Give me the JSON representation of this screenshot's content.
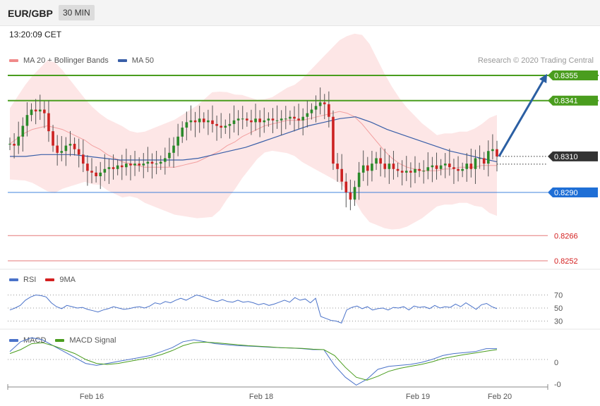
{
  "header": {
    "pair": "EUR/GBP",
    "timeframe": "30 MIN",
    "time": "13:20:09 CET"
  },
  "credit": "Research © 2020 Trading Central",
  "chart_data": [
    {
      "type": "candlestick",
      "legend": [
        {
          "name": "MA 20 + Bollinger Bands",
          "color": "#f08a8a"
        },
        {
          "name": "MA 50",
          "color": "#3a5fa8"
        }
      ],
      "x_labels": [
        "Feb 16",
        "Feb 18",
        "Feb 19",
        "Feb 20"
      ],
      "current_price": "0.8310",
      "levels": [
        {
          "label": "0.8355",
          "value": 0.8355,
          "kind": "resistance",
          "color": "#4a9d1e"
        },
        {
          "label": "0.8341",
          "value": 0.8341,
          "kind": "resistance",
          "color": "#4a9d1e"
        },
        {
          "label": "0.8290",
          "value": 0.829,
          "kind": "support",
          "color": "#1f6fd6"
        },
        {
          "label": "0.8266",
          "value": 0.8266,
          "kind": "support",
          "color": "#d42020"
        },
        {
          "label": "0.8252",
          "value": 0.8252,
          "kind": "support",
          "color": "#d42020"
        }
      ],
      "close_series": [
        0.8317,
        0.8316,
        0.8321,
        0.8327,
        0.8333,
        0.8336,
        0.8335,
        0.8336,
        0.8334,
        0.8324,
        0.8316,
        0.8312,
        0.8313,
        0.8316,
        0.8317,
        0.8314,
        0.8311,
        0.8306,
        0.8302,
        0.8301,
        0.8299,
        0.8301,
        0.8303,
        0.8304,
        0.8303,
        0.8305,
        0.8304,
        0.8306,
        0.8305,
        0.8306,
        0.8305,
        0.8306,
        0.8307,
        0.8306,
        0.8306,
        0.8307,
        0.8309,
        0.8312,
        0.8316,
        0.8321,
        0.8326,
        0.8329,
        0.833,
        0.8329,
        0.8331,
        0.8329,
        0.833,
        0.8328,
        0.8327,
        0.8326,
        0.8327,
        0.8328,
        0.833,
        0.8331,
        0.8331,
        0.833,
        0.8329,
        0.8331,
        0.8329,
        0.833,
        0.8331,
        0.833,
        0.833,
        0.8331,
        0.8331,
        0.8332,
        0.8331,
        0.833,
        0.8332,
        0.8334,
        0.8336,
        0.8338,
        0.834,
        0.8339,
        0.8332,
        0.8306,
        0.8303,
        0.8296,
        0.829,
        0.8286,
        0.8293,
        0.8301,
        0.8305,
        0.8302,
        0.8306,
        0.8309,
        0.8306,
        0.8303,
        0.8306,
        0.8303,
        0.8302,
        0.8301,
        0.8302,
        0.8301,
        0.8303,
        0.8302,
        0.8302,
        0.8304,
        0.8305,
        0.8303,
        0.8305,
        0.8306,
        0.8304,
        0.8303,
        0.8302,
        0.8303,
        0.8306,
        0.8303,
        0.8309,
        0.8309,
        0.8306,
        0.8313,
        0.8314,
        0.831
      ],
      "ma20_series": [
        0.8317,
        0.832,
        0.8323,
        0.8325,
        0.8326,
        0.8327,
        0.8326,
        0.8325,
        0.8323,
        0.8321,
        0.8319,
        0.8316,
        0.8314,
        0.8311,
        0.8309,
        0.8307,
        0.8306,
        0.8305,
        0.8304,
        0.8304,
        0.8304,
        0.8304,
        0.8304,
        0.8305,
        0.8306,
        0.8307,
        0.8309,
        0.8311,
        0.8313,
        0.8316,
        0.8318,
        0.8321,
        0.8323,
        0.8325,
        0.8327,
        0.8328,
        0.8329,
        0.833,
        0.833,
        0.833,
        0.8331,
        0.8332,
        0.8333,
        0.8334,
        0.8335,
        0.8334,
        0.8332,
        0.8328,
        0.8323,
        0.8318,
        0.8313,
        0.8309,
        0.8306,
        0.8304,
        0.8303,
        0.8302,
        0.8302,
        0.8302,
        0.8303,
        0.8303,
        0.8304,
        0.8304,
        0.8304,
        0.8305,
        0.8305,
        0.8305
      ],
      "ma50_series": [
        0.831,
        0.831,
        0.8311,
        0.8311,
        0.8311,
        0.831,
        0.8309,
        0.8308,
        0.8308,
        0.8308,
        0.8308,
        0.8308,
        0.8309,
        0.8311,
        0.8313,
        0.8315,
        0.8318,
        0.8321,
        0.8324,
        0.8327,
        0.8329,
        0.8331,
        0.8332,
        0.8329,
        0.8325,
        0.8322,
        0.8319,
        0.8316,
        0.8313,
        0.8311,
        0.8309,
        0.8307
      ],
      "forecast_target": "0.8355"
    },
    {
      "type": "line",
      "legend": [
        {
          "name": "RSI",
          "color": "#4a72c9"
        },
        {
          "name": "9MA",
          "color": "#d42020"
        }
      ],
      "y_ticks": [
        "70",
        "50",
        "30"
      ],
      "ylim": [
        20,
        80
      ],
      "series": [
        {
          "name": "RSI",
          "values": [
            47,
            50,
            54,
            62,
            67,
            70,
            69,
            67,
            58,
            52,
            49,
            54,
            52,
            50,
            51,
            48,
            46,
            44,
            47,
            49,
            52,
            50,
            48,
            49,
            51,
            52,
            50,
            53,
            58,
            56,
            60,
            58,
            62,
            65,
            62,
            66,
            70,
            68,
            65,
            62,
            60,
            63,
            60,
            59,
            62,
            59,
            60,
            58,
            55,
            57,
            54,
            56,
            59,
            62,
            59,
            66,
            62,
            64,
            58,
            65,
            37,
            34,
            31,
            30,
            27,
            47,
            51,
            53,
            49,
            52,
            47,
            49,
            50,
            47,
            51,
            50,
            52,
            47,
            53,
            51,
            52,
            49,
            54,
            50,
            52,
            51,
            56,
            52,
            58,
            53,
            48,
            55,
            57,
            52,
            49
          ]
        }
      ]
    },
    {
      "type": "line",
      "legend": [
        {
          "name": "MACD",
          "color": "#4a72c9"
        },
        {
          "name": "MACD Signal",
          "color": "#4a9d1e"
        }
      ],
      "y_ticks": [
        "0",
        "-0"
      ],
      "series": [
        {
          "name": "MACD",
          "values": [
            0.4,
            0.9,
            1.1,
            1.0,
            0.7,
            0.4,
            0.1,
            -0.2,
            -0.3,
            -0.2,
            -0.1,
            0.0,
            0.1,
            0.2,
            0.4,
            0.6,
            0.9,
            1.0,
            0.9,
            0.8,
            0.75,
            0.7,
            0.68,
            0.65,
            0.62,
            0.6,
            0.58,
            0.55,
            0.5,
            0.5,
            -0.3,
            -0.9,
            -1.3,
            -1.0,
            -0.5,
            -0.35,
            -0.3,
            -0.25,
            -0.15,
            0.0,
            0.2,
            0.3,
            0.35,
            0.4,
            0.55,
            0.55
          ]
        },
        {
          "name": "MACD Signal",
          "values": [
            0.3,
            0.5,
            0.8,
            0.85,
            0.7,
            0.5,
            0.3,
            0.0,
            -0.2,
            -0.25,
            -0.2,
            -0.1,
            0.0,
            0.1,
            0.25,
            0.45,
            0.7,
            0.85,
            0.88,
            0.85,
            0.8,
            0.75,
            0.7,
            0.67,
            0.64,
            0.6,
            0.58,
            0.56,
            0.52,
            0.5,
            0.2,
            -0.4,
            -0.9,
            -1.05,
            -0.85,
            -0.6,
            -0.45,
            -0.35,
            -0.25,
            -0.12,
            0.05,
            0.15,
            0.25,
            0.33,
            0.42,
            0.5
          ]
        }
      ]
    }
  ]
}
